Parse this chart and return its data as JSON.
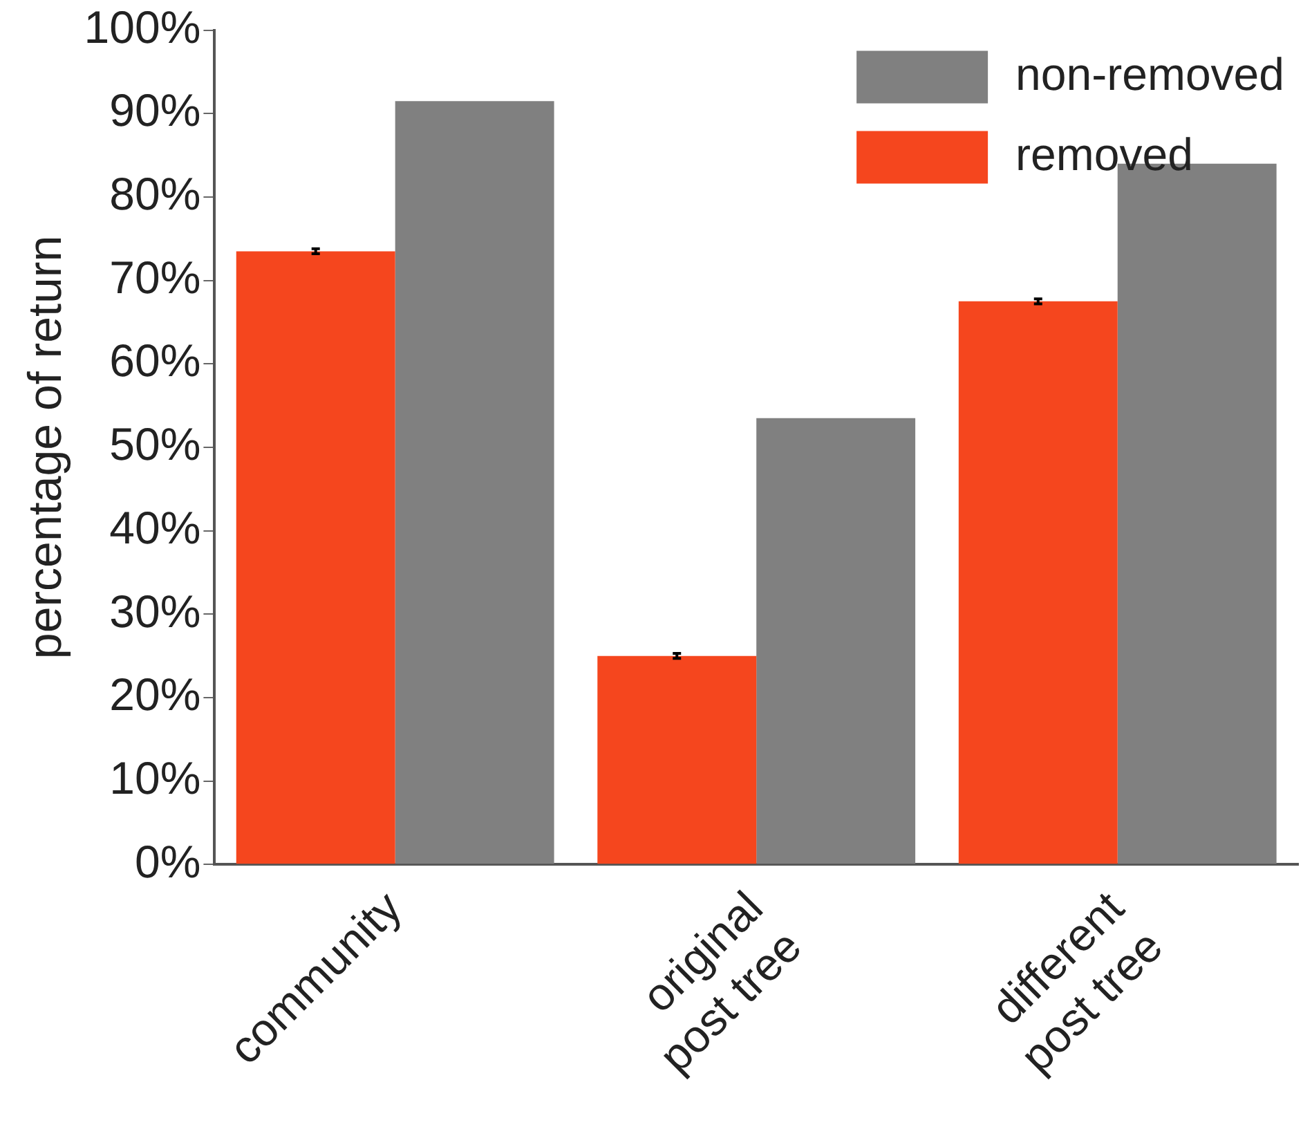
{
  "chart_data": {
    "type": "bar",
    "ylabel": "percentage of return",
    "categories": [
      "community",
      "original\npost tree",
      "different\npost tree"
    ],
    "series": [
      {
        "name": "removed",
        "color": "#f5461e",
        "values": [
          73.5,
          25,
          67.5
        ],
        "errors": [
          0.3,
          0.3,
          0.3
        ]
      },
      {
        "name": "non-removed",
        "color": "#808080",
        "values": [
          91.5,
          53.5,
          84
        ]
      }
    ],
    "ylim": [
      0,
      100
    ],
    "yticks": [
      {
        "value": 0,
        "label": "0%"
      },
      {
        "value": 10,
        "label": "10%"
      },
      {
        "value": 20,
        "label": "20%"
      },
      {
        "value": 30,
        "label": "30%"
      },
      {
        "value": 40,
        "label": "40%"
      },
      {
        "value": 50,
        "label": "50%"
      },
      {
        "value": 60,
        "label": "60%"
      },
      {
        "value": 70,
        "label": "70%"
      },
      {
        "value": 80,
        "label": "80%"
      },
      {
        "value": 90,
        "label": "90%"
      },
      {
        "value": 100,
        "label": "100%"
      }
    ],
    "grid": false,
    "legend": "top right"
  }
}
